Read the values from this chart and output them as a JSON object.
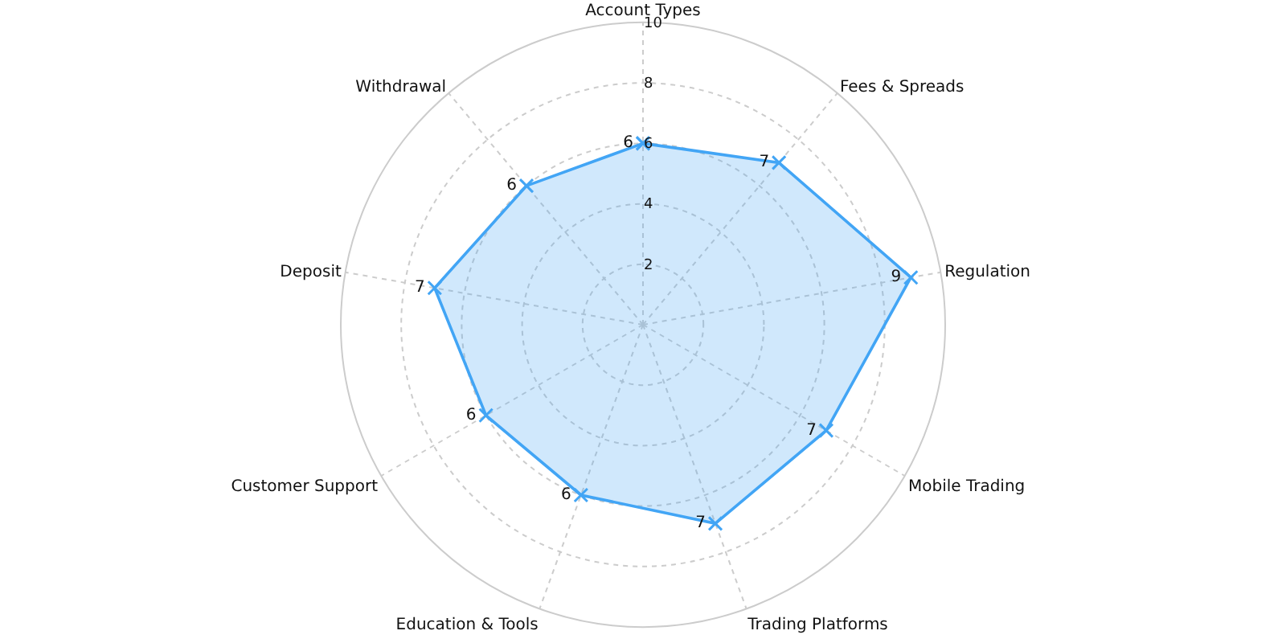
{
  "chart_data": {
    "type": "radar",
    "categories": [
      "Account Types",
      "Fees & Spreads",
      "Regulation",
      "Mobile Trading",
      "Trading Platforms",
      "Education & Tools",
      "Customer Support",
      "Deposit",
      "Withdrawal"
    ],
    "series": [
      {
        "color": "#42a5f5",
        "values": [
          6,
          7,
          9,
          7,
          7,
          6,
          6,
          7,
          6
        ]
      }
    ],
    "ylim": [
      0,
      10
    ],
    "yticks": [
      2,
      4,
      6,
      8,
      10
    ],
    "grid": true,
    "marker": "cross",
    "line_style": "solid",
    "data_labels": true
  }
}
